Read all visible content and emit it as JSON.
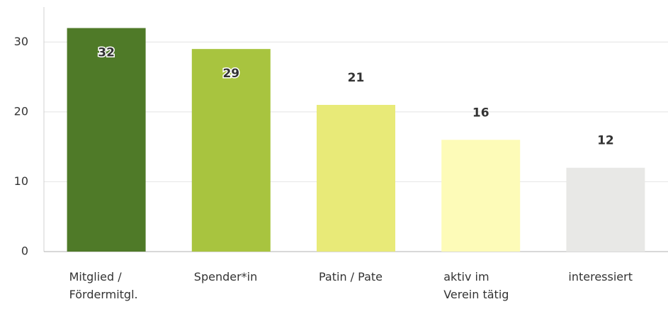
{
  "chart_data": {
    "type": "bar",
    "categories": [
      "Mitglied / Fördermitgl.",
      "Spender*in",
      "Patin / Pate",
      "aktiv im Verein tätig",
      "interessiert"
    ],
    "values": [
      32,
      29,
      21,
      16,
      12
    ],
    "colors": [
      "#4f7a28",
      "#a8c43f",
      "#e8ea78",
      "#fdfbb8",
      "#e8e8e6"
    ],
    "ylim": [
      0,
      35
    ],
    "yticks": [
      0,
      10,
      20,
      30
    ],
    "grid": true
  }
}
